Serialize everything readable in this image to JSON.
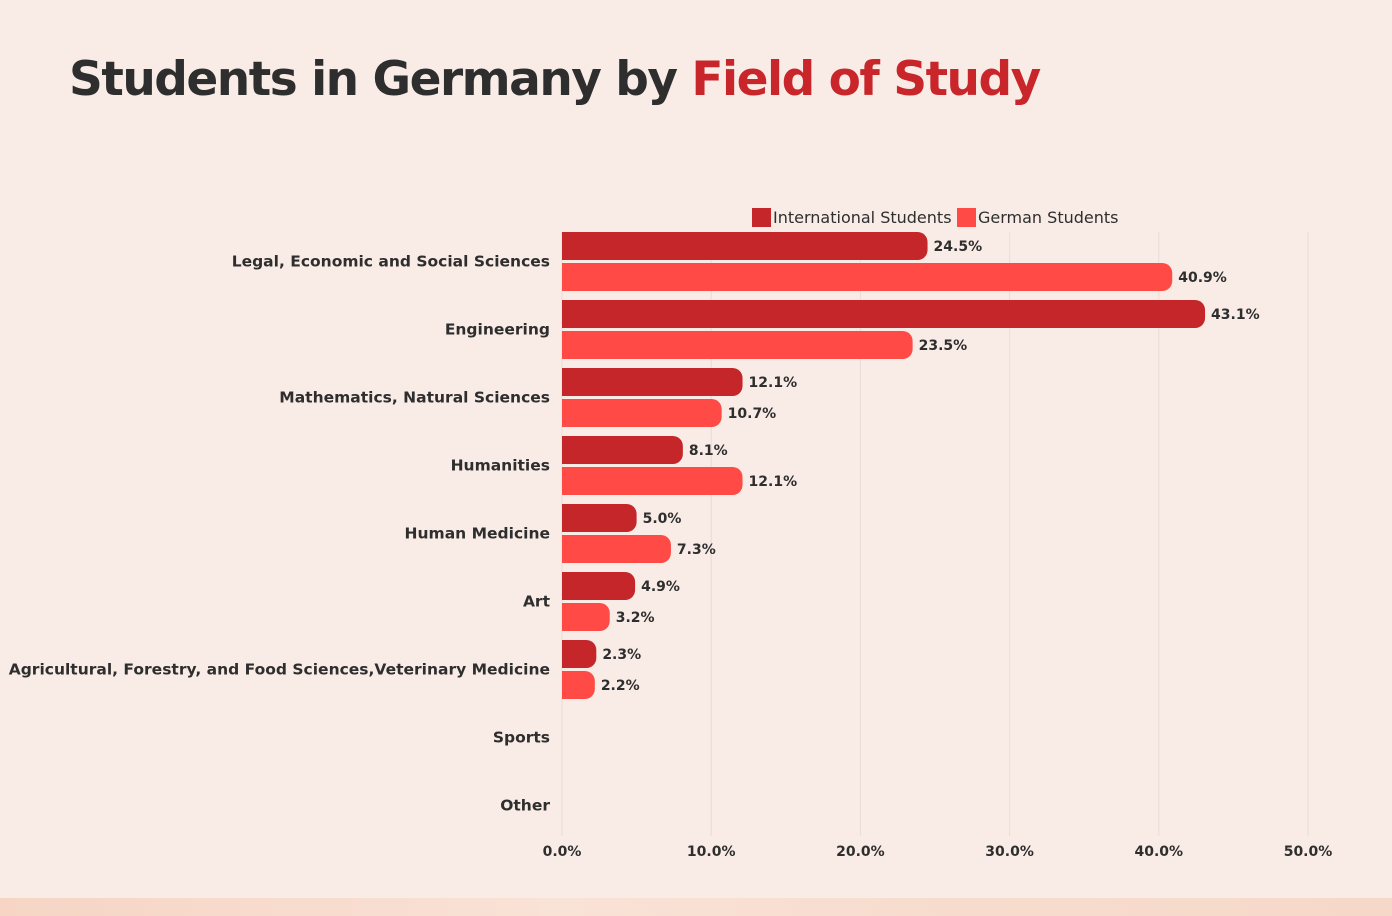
{
  "title": {
    "part1": "Students in Germany by ",
    "part2": "Field of Study"
  },
  "colors": {
    "international": "#c4262a",
    "german": "#ff4a45",
    "title_accent": "#c8262a",
    "text": "#2e2e2e",
    "grid": "#e8dcd6"
  },
  "chart_data": {
    "type": "bar",
    "orientation": "horizontal",
    "title": "Students in Germany by Field of Study",
    "categories": [
      "Legal, Economic and Social Sciences",
      "Engineering",
      "Mathematics, Natural Sciences",
      "Humanities",
      "Human Medicine",
      "Art",
      "Agricultural, Forestry, and Food Sciences,Veterinary Medicine",
      "Sports",
      "Other"
    ],
    "series": [
      {
        "name": "International Students",
        "values": [
          24.5,
          43.1,
          12.1,
          8.1,
          5.0,
          4.9,
          2.3,
          null,
          null
        ]
      },
      {
        "name": "German Students",
        "values": [
          40.9,
          23.5,
          10.7,
          12.1,
          7.3,
          3.2,
          2.2,
          null,
          null
        ]
      }
    ],
    "xlim": [
      0,
      50
    ],
    "xticks": [
      "0.0%",
      "10.0%",
      "20.0%",
      "30.0%",
      "40.0%",
      "50.0%"
    ],
    "legend_position": "top",
    "grid": true
  }
}
